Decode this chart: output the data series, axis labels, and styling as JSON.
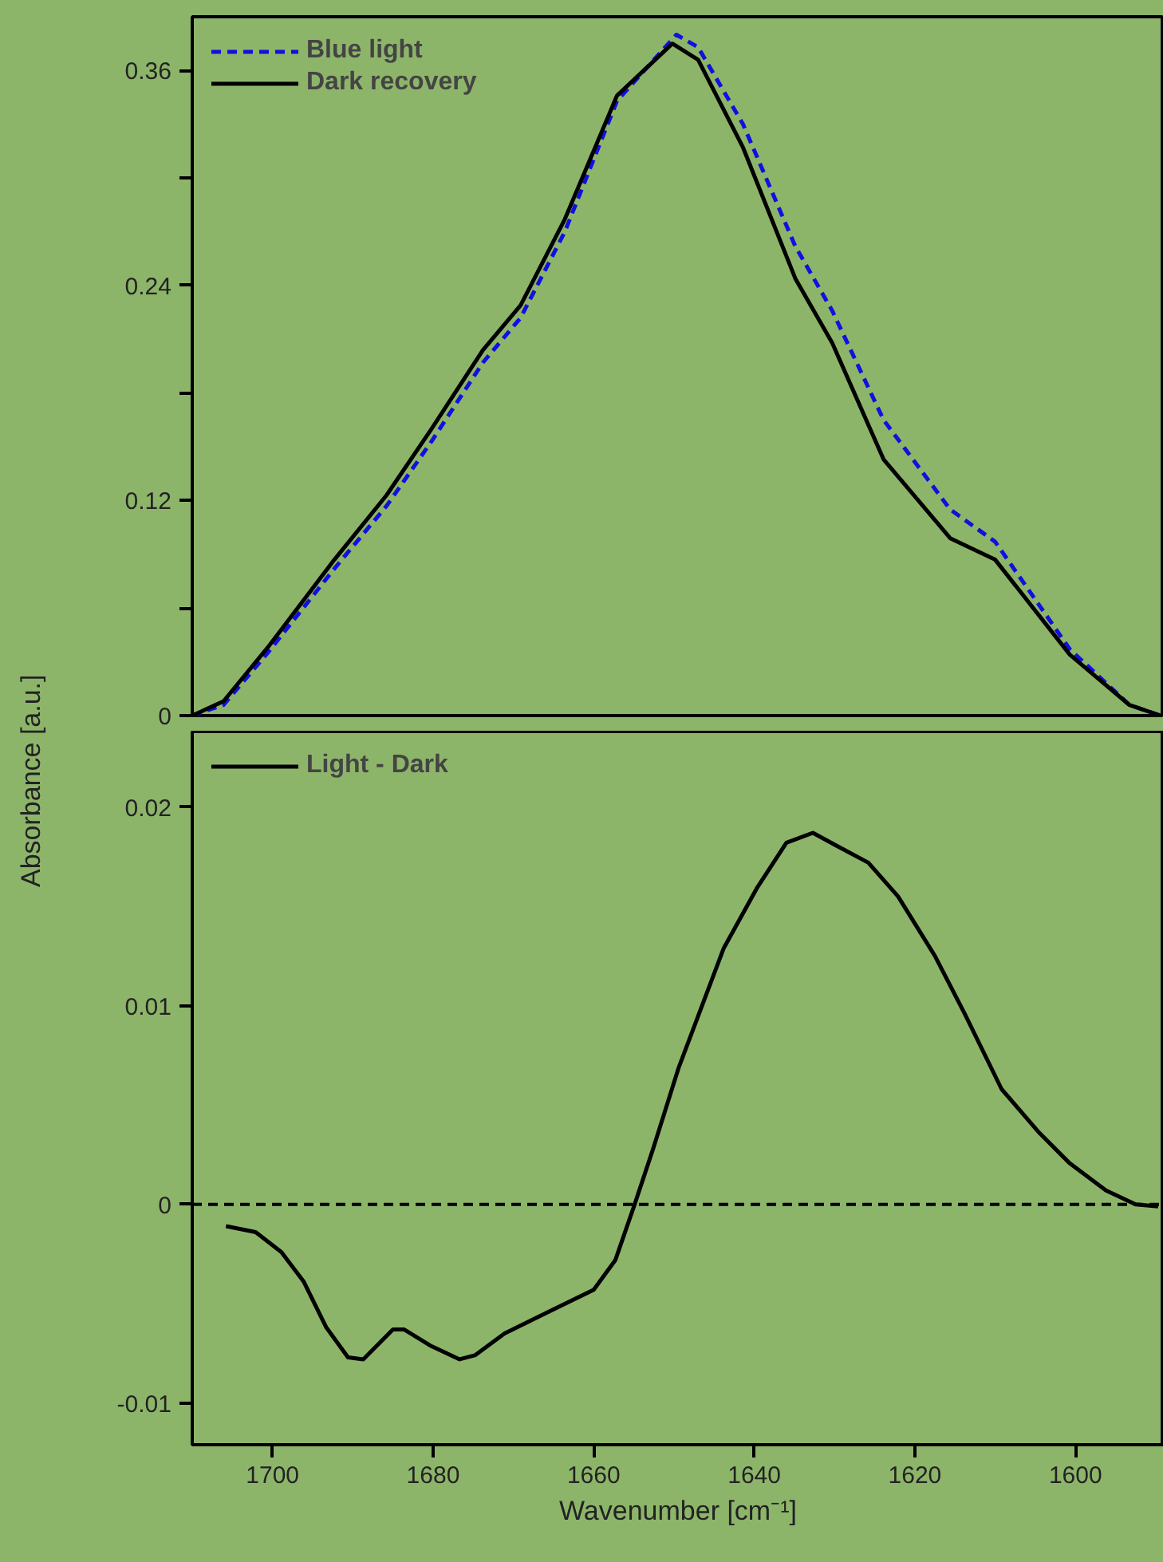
{
  "chart_data": [
    {
      "type": "line",
      "ylabel": "Absorbance [a.u.]",
      "xlim": [
        1710,
        1589
      ],
      "ylim": [
        0,
        0.39
      ],
      "xticks": [
        1700,
        1680,
        1660,
        1640,
        1620,
        1600
      ],
      "yticks": [
        0,
        {
          "value": 0.06,
          "label": null
        },
        0.12,
        {
          "value": 0.18,
          "label": null
        },
        0.24,
        {
          "value": 0.3,
          "label": null
        },
        0.36
      ],
      "tick_labels": "y",
      "legend": "top left",
      "grid": false,
      "x": [
        1710,
        1706.1,
        1700.6,
        1692.3,
        1685.8,
        1680.2,
        1673.8,
        1669.1,
        1663.6,
        1657.1,
        1650.2,
        1647.0,
        1641.4,
        1634.9,
        1630.3,
        1623.9,
        1615.6,
        1610.0,
        1600.7,
        1593.3,
        1589.4
      ],
      "series": [
        {
          "name": "Blue light",
          "color": "#1010e0",
          "line_style": "dashed",
          "x": [
            1710,
            1706.1,
            1700.6,
            1692.3,
            1685.8,
            1680.2,
            1673.8,
            1669.1,
            1663.6,
            1657.1,
            1649.7,
            1647.0,
            1641.4,
            1634.9,
            1630.3,
            1623.9,
            1615.6,
            1610.0,
            1600.7,
            1593.3,
            1589.4
          ],
          "values": [
            0,
            0.006,
            0.035,
            0.082,
            0.117,
            0.153,
            0.197,
            0.222,
            0.27,
            0.343,
            0.38,
            0.373,
            0.33,
            0.262,
            0.226,
            0.165,
            0.115,
            0.097,
            0.037,
            0.006,
            0
          ]
        },
        {
          "name": "Dark recovery",
          "color": "#000000",
          "line_style": "solid",
          "values": [
            0,
            0.008,
            0.038,
            0.087,
            0.123,
            0.16,
            0.204,
            0.229,
            0.277,
            0.346,
            0.375,
            0.366,
            0.317,
            0.244,
            0.208,
            0.143,
            0.099,
            0.087,
            0.034,
            0.006,
            0
          ]
        }
      ]
    },
    {
      "type": "line",
      "xlabel": "Wavenumber [cm⁻¹]",
      "xlim": [
        1710,
        1589
      ],
      "ylim": [
        -0.0121,
        0.0238
      ],
      "xticks": [
        1700,
        1680,
        1660,
        1640,
        1620,
        1600
      ],
      "yticks": [
        -0.01,
        0,
        0.01,
        0.02
      ],
      "legend": "top left",
      "grid": false,
      "ref_lines": [
        {
          "axis": "y",
          "value": 0,
          "color": "#000000",
          "line_style": "dashed"
        }
      ],
      "series": [
        {
          "name": "Light - Dark",
          "color": "#000000",
          "line_style": "solid",
          "x": [
            1705.8,
            1702.1,
            1698.9,
            1696.1,
            1693.3,
            1690.6,
            1688.7,
            1685.0,
            1683.6,
            1680.4,
            1676.7,
            1674.8,
            1671.1,
            1665.6,
            1660.0,
            1657.3,
            1654.9,
            1652.6,
            1649.4,
            1643.8,
            1639.7,
            1636.0,
            1632.7,
            1629.5,
            1625.8,
            1622.1,
            1617.5,
            1613.8,
            1609.2,
            1604.5,
            1600.8,
            1596.2,
            1592.5,
            1589.7
          ],
          "values": [
            -0.0011,
            -0.0014,
            -0.0024,
            -0.0039,
            -0.0062,
            -0.0077,
            -0.0078,
            -0.0063,
            -0.0063,
            -0.0071,
            -0.0078,
            -0.0076,
            -0.0065,
            -0.0054,
            -0.0043,
            -0.0028,
            0,
            0.0028,
            0.0069,
            0.0129,
            0.0159,
            0.0182,
            0.0187,
            0.018,
            0.0172,
            0.0155,
            0.0125,
            0.0096,
            0.0058,
            0.0036,
            0.0021,
            0.0007,
            0,
            -0.0001
          ]
        }
      ]
    }
  ]
}
